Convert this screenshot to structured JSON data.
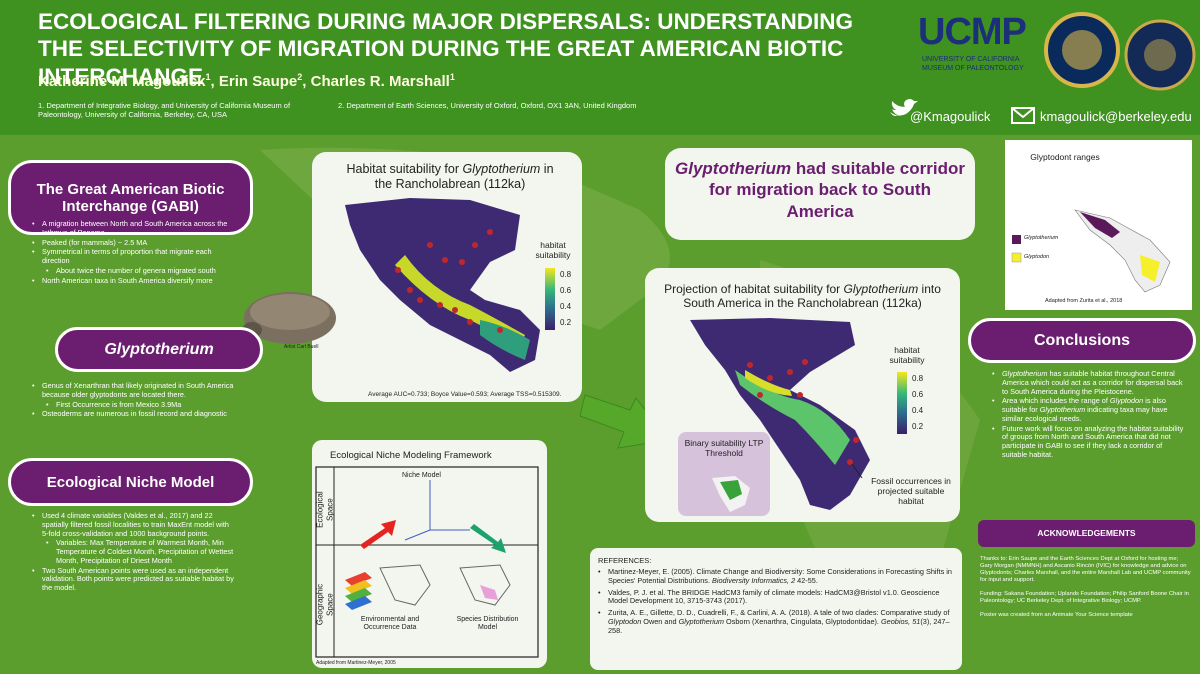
{
  "header": {
    "title": "ECOLOGICAL FILTERING DURING MAJOR DISPERSALS: UNDERSTANDING THE SELECTIVITY OF MIGRATION DURING THE GREAT AMERICAN BIOTIC INTERCHANGE",
    "authors": [
      {
        "name": "Katherine M. Magoulick",
        "sup": "1",
        "sep": ", "
      },
      {
        "name": "Erin Saupe",
        "sup": "2",
        "sep": ", "
      },
      {
        "name": "Charles R. Marshall",
        "sup": "1"
      }
    ],
    "affiliations": [
      "1. Department of Integrative Biology, and University of California Museum of Paleontology, University of California, Berkeley, CA, USA",
      "2. Department of Earth Sciences, University of Oxford, Oxford, OX1 3AN, United Kingdom"
    ],
    "logo": {
      "name": "UCMP",
      "line1": "UNIVERSITY OF CALIFORNIA",
      "line2": "MUSEUM OF PALEONTOLOGY"
    },
    "twitter": "@Kmagoulick",
    "email": "kmagoulick@berkeley.edu"
  },
  "gabi": {
    "title": "The Great American Biotic Interchange (GABI)",
    "bullets": [
      {
        "text": "A migration between North and South America across the Isthmus of Panama",
        "level": 1
      },
      {
        "text": "Peaked (for mammals) ~ 2.5 MA",
        "level": 1
      },
      {
        "text": "Symmetrical in terms of proportion that migrate each direction",
        "level": 1
      },
      {
        "text": "About twice the number of genera migrated south",
        "level": 2
      },
      {
        "text": "North American taxa in South America diversify more",
        "level": 1
      }
    ]
  },
  "glyptotherium": {
    "title": "Glyptotherium",
    "credit": "Artist Carl Buell",
    "bullets": [
      {
        "text": "Genus of Xenarthran that likely originated in South America because older glyptodonts are located there.",
        "level": 1
      },
      {
        "text": "First Occurrence is from Mexico 3.9Ma",
        "level": 2
      },
      {
        "text": "Osteoderms are numerous in fossil record and diagnostic",
        "level": 1
      }
    ]
  },
  "enm": {
    "title": "Ecological Niche Model",
    "bullets": [
      {
        "text": "Used 4 climate variables (Valdes et al., 2017) and 22 spatially filtered fossil localities to train MaxEnt model with 5-fold cross-validation and 1000 background points.",
        "level": 1
      },
      {
        "text": "Variables: Max Temperature of Warmest Month, Min Temperature of Coldest Month, Precipitation of Wettest Month, Precipitation of Driest Month",
        "level": 2
      },
      {
        "text": "Two South American points were used as an independent validation. Both points were predicted as suitable habitat by the model.",
        "level": 1
      }
    ]
  },
  "habitat_map": {
    "title": [
      "Habitat suitability for ",
      {
        "i": "Glyptotherium"
      },
      " in the Rancholabrean (112ka)"
    ],
    "legend_title": "habitat suitability",
    "legend_ticks": [
      0.8,
      0.6,
      0.4,
      0.2
    ],
    "stats": "Average AUC=0.733; Boyce Value=0.593; Average TSS=0.515309."
  },
  "framework": {
    "title": "Ecological Niche Modeling Framework",
    "ecological_space": "Ecological Space",
    "geographic_space": "Geographic Space",
    "niche_model": "Niche Model",
    "env_data": "Environmental and Occurrence Data",
    "sdm": "Species Distribution Model",
    "credit": "Adapted from Martinez-Meyer, 2005"
  },
  "headline": [
    {
      "i": "Glyptotherium"
    },
    " had suitable corridor for migration back to South America"
  ],
  "projection_map": {
    "title": [
      "Projection of habitat suitability for ",
      {
        "i": "Glyptotherium"
      },
      " into South America in the Rancholabrean (112ka)"
    ],
    "legend_title": "habitat suitability",
    "legend_ticks": [
      0.8,
      0.6,
      0.4,
      0.2
    ],
    "binary": "Binary suitability LTP Threshold",
    "fossil_note": "Fossil occurrences in projected suitable habitat"
  },
  "references": {
    "title": "REFERENCES:",
    "items": [
      [
        "Martinez-Meyer, E. (2005). Climate Change and Biodiversity: Some Considerations in Forecasting Shifts in Species' Potential Distributions. ",
        {
          "i": "Biodiversity Informatics, 2"
        },
        " 42-55."
      ],
      [
        "Valdes, P. J. et al. The BRIDGE HadCM3 family of climate models: HadCM3@Bristol v1.0. Geoscience Model Development 10, 3715-3743 (2017)."
      ],
      [
        "Zurita, A. E., Gillette, D. D., Cuadrelli, F., & Carlini, A. A. (2018). A tale of two clades: Comparative study of ",
        {
          "i": "Glyptodon"
        },
        " Owen and ",
        {
          "i": "Glyptotherium"
        },
        " Osborn (Xenarthra, Cingulata, Glyptodontidae). ",
        {
          "i": "Geobios, 51"
        },
        "(3), 247–258."
      ]
    ]
  },
  "range_map": {
    "title": "Glyptodont ranges",
    "legend": [
      {
        "i": "Glyptotherium"
      },
      {
        "i": "Glyptodon"
      }
    ],
    "credit": "Adapted from Zurita et al., 2018"
  },
  "conclusions": {
    "title": "Conclusions",
    "bullets": [
      {
        "text": [
          {
            "i": "Glyptotherium"
          },
          " has suitable habitat throughout Central America which could act as a corridor for dispersal back to South America during the Pleistocene."
        ],
        "level": 1
      },
      {
        "text": [
          "Area which includes the range of ",
          {
            "i": "Glyptodon"
          },
          " is also suitable for ",
          {
            "i": "Glyptotherium"
          },
          " indicating taxa may have similar ecological needs."
        ],
        "level": 1
      },
      {
        "text": "Future work will focus on analyzing the habitat suitability of groups from North and South America that did not participate in GABI to see if they lack a corridor of suitable habitat.",
        "level": 1
      }
    ]
  },
  "acknowledgements": {
    "title": "ACKNOWLEDGEMENTS",
    "paragraphs": [
      "Thanks to: Erin Saupe and the Earth Sciences Dept at Oxford for hosting me; Gary Morgan (NMMNH) and Ascanio Rincón (IVIC) for knowledge and advice on Glyptodonts; Charles Marshall, and the entire Marshall Lab and UCMP community for input and support.",
      "Funding: Sakana Foundation; Uplands Foundation; Philip Sanford Boone Chair in Paleontology; UC Berkeley Dept. of Integrative Biology; UCMP.",
      "Poster was created from an Animate Your Science template"
    ]
  }
}
